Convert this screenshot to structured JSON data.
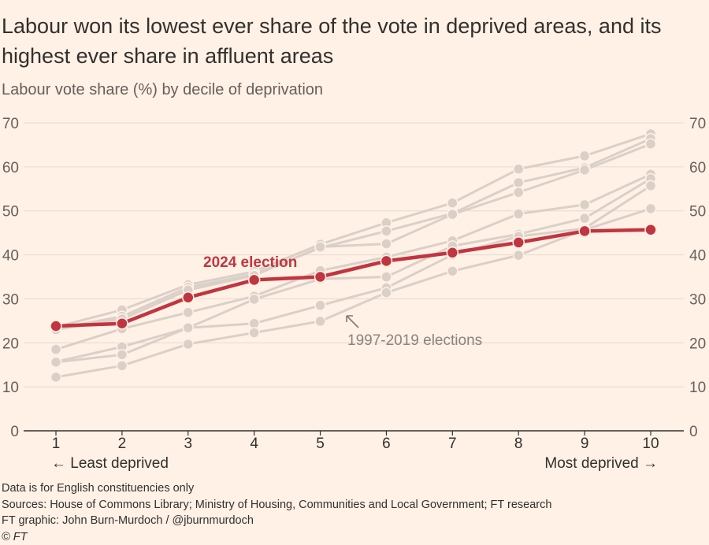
{
  "title": "Labour won its lowest ever share of the vote in deprived areas, and its highest ever share in affluent areas",
  "subtitle": "Labour vote share (%) by decile of deprivation",
  "footer": {
    "note": "Data is for English constituencies only",
    "sources": "Sources: House of Commons Library; Ministry of Housing, Communities and Local Government; FT research",
    "credit": "FT graphic: John Burn-Murdoch / @jburnmurdoch",
    "copyright": "© FT"
  },
  "colors": {
    "background": "#fff1e5",
    "highlight": "#c13540",
    "past": "#dbd0c8",
    "grid": "#e6d9ce",
    "text": "#33302e"
  },
  "chart_data": {
    "type": "line",
    "x": [
      1,
      2,
      3,
      4,
      5,
      6,
      7,
      8,
      9,
      10
    ],
    "xlim": [
      1,
      10
    ],
    "ylim": [
      0,
      70
    ],
    "yticks": [
      0,
      10,
      20,
      30,
      40,
      50,
      60,
      70
    ],
    "xlabel_left": "← Least deprived",
    "xlabel_right": "Most deprived →",
    "grid": true,
    "highlight": {
      "name": "2024 election",
      "values": [
        23.8,
        24.4,
        30.3,
        34.3,
        35.0,
        38.6,
        40.5,
        42.8,
        45.4,
        45.7
      ]
    },
    "background_label": "1997-2019 elections",
    "background_series": [
      {
        "values": [
          23.6,
          27.5,
          33.2,
          36.2,
          42.4,
          47.3,
          51.8,
          59.5,
          62.5,
          67.5
        ]
      },
      {
        "values": [
          23.2,
          26.0,
          32.6,
          35.6,
          41.6,
          45.4,
          49.4,
          56.4,
          59.8,
          66.4
        ]
      },
      {
        "values": [
          23.0,
          25.4,
          32.0,
          35.3,
          41.8,
          42.5,
          49.2,
          54.2,
          59.3,
          65.2
        ]
      },
      {
        "values": [
          18.5,
          23.2,
          26.9,
          30.6,
          36.4,
          39.5,
          43.2,
          49.3,
          51.4,
          58.3
        ]
      },
      {
        "values": [
          15.7,
          19.1,
          23.4,
          29.9,
          34.5,
          35.0,
          42.0,
          44.7,
          48.3,
          57.3
        ]
      },
      {
        "values": [
          15.6,
          17.3,
          23.4,
          24.4,
          28.5,
          32.5,
          40.0,
          44.2,
          46.0,
          55.7
        ]
      },
      {
        "values": [
          12.2,
          14.8,
          19.7,
          22.3,
          24.9,
          31.4,
          36.3,
          39.9,
          45.7,
          50.5
        ]
      }
    ]
  }
}
